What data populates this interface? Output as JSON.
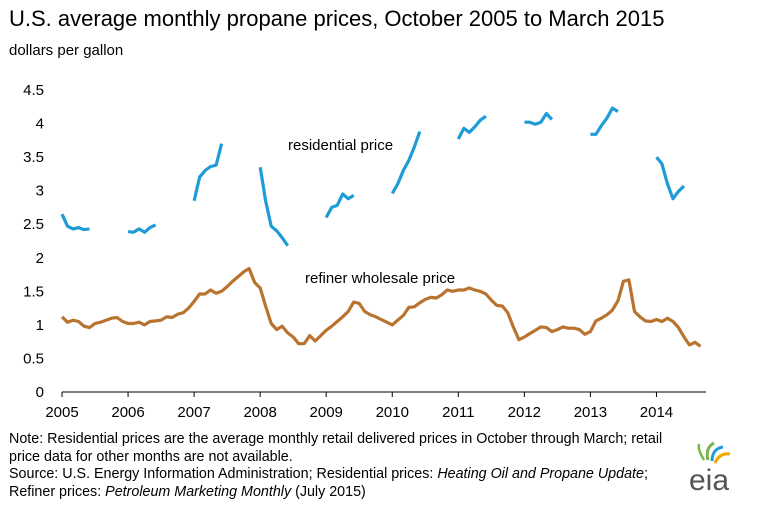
{
  "title": "U.S. average monthly propane prices, October 2005 to March 2015",
  "unit_label": "dollars per gallon",
  "notes": {
    "note_line": "Note: Residential prices are the average monthly retail delivered prices in October through March; retail price data for other months are not available.",
    "source_prefix": "Source: U.S. Energy Information Administration; Residential prices: ",
    "source_pub1": "Heating Oil and Propane Update",
    "source_mid": "; Refiner prices: ",
    "source_pub2": "Petroleum Marketing Monthly",
    "source_suffix": " (July 2015)"
  },
  "logo_text": "eia",
  "colors": {
    "residential": "#1f9bd7",
    "refiner": "#b8732f",
    "axis": "#000000"
  },
  "chart_data": {
    "type": "line",
    "xlabel": "",
    "ylabel": "dollars per gallon",
    "ylim": [
      0,
      4.5
    ],
    "yticks": [
      0,
      0.5,
      1,
      1.5,
      2,
      2.5,
      3,
      3.5,
      4,
      4.5
    ],
    "ytick_labels": [
      "0",
      "0.5",
      "1",
      "1.5",
      "2",
      "2.5",
      "3",
      "3.5",
      "4",
      "4.5"
    ],
    "xlim": [
      2005,
      2014.75
    ],
    "xticks": [
      2005,
      2006,
      2007,
      2008,
      2009,
      2010,
      2011,
      2012,
      2013,
      2014
    ],
    "xtick_labels": [
      "2005",
      "2006",
      "2007",
      "2008",
      "2009",
      "2010",
      "2011",
      "2012",
      "2013",
      "2014"
    ],
    "grid": false,
    "legend": "none",
    "annotations": [
      {
        "text": "residential price",
        "series": "residential"
      },
      {
        "text": "refiner wholesale price",
        "series": "refiner"
      }
    ],
    "series": [
      {
        "id": "residential",
        "segments": [
          [
            [
              2005.0,
              2.65
            ],
            [
              2005.083,
              2.47
            ],
            [
              2005.167,
              2.43
            ],
            [
              2005.25,
              2.45
            ],
            [
              2005.333,
              2.42
            ],
            [
              2005.417,
              2.43
            ]
          ],
          [
            [
              2006.0,
              2.39
            ],
            [
              2006.083,
              2.38
            ],
            [
              2006.167,
              2.43
            ],
            [
              2006.25,
              2.38
            ],
            [
              2006.333,
              2.45
            ],
            [
              2006.417,
              2.49
            ]
          ],
          [
            [
              2007.0,
              2.85
            ],
            [
              2007.083,
              3.2
            ],
            [
              2007.167,
              3.3
            ],
            [
              2007.25,
              3.36
            ],
            [
              2007.333,
              3.38
            ],
            [
              2007.417,
              3.7
            ]
          ],
          [
            [
              2008.0,
              3.35
            ],
            [
              2008.083,
              2.85
            ],
            [
              2008.167,
              2.47
            ],
            [
              2008.25,
              2.4
            ],
            [
              2008.333,
              2.3
            ],
            [
              2008.417,
              2.18
            ]
          ],
          [
            [
              2009.0,
              2.6
            ],
            [
              2009.083,
              2.75
            ],
            [
              2009.167,
              2.78
            ],
            [
              2009.25,
              2.95
            ],
            [
              2009.333,
              2.88
            ],
            [
              2009.417,
              2.93
            ]
          ],
          [
            [
              2010.0,
              2.96
            ],
            [
              2010.083,
              3.1
            ],
            [
              2010.167,
              3.3
            ],
            [
              2010.25,
              3.45
            ],
            [
              2010.333,
              3.65
            ],
            [
              2010.417,
              3.88
            ]
          ],
          [
            [
              2011.0,
              3.77
            ],
            [
              2011.083,
              3.93
            ],
            [
              2011.167,
              3.87
            ],
            [
              2011.25,
              3.95
            ],
            [
              2011.333,
              4.05
            ],
            [
              2011.417,
              4.11
            ]
          ],
          [
            [
              2012.0,
              4.02
            ],
            [
              2012.083,
              4.02
            ],
            [
              2012.167,
              3.99
            ],
            [
              2012.25,
              4.02
            ],
            [
              2012.333,
              4.15
            ],
            [
              2012.417,
              4.06
            ]
          ],
          [
            [
              2013.0,
              3.84
            ],
            [
              2013.083,
              3.84
            ],
            [
              2013.167,
              3.97
            ],
            [
              2013.25,
              4.08
            ],
            [
              2013.333,
              4.23
            ],
            [
              2013.417,
              4.18
            ]
          ],
          [
            [
              2014.0,
              3.5
            ],
            [
              2014.083,
              3.4
            ],
            [
              2014.167,
              3.1
            ],
            [
              2014.25,
              2.88
            ],
            [
              2014.333,
              2.99
            ],
            [
              2014.417,
              3.07
            ]
          ]
        ]
      },
      {
        "id": "refiner",
        "segments": [
          [
            [
              2005.0,
              1.12
            ],
            [
              2005.083,
              1.04
            ],
            [
              2005.167,
              1.07
            ],
            [
              2005.25,
              1.05
            ],
            [
              2005.333,
              0.98
            ],
            [
              2005.417,
              0.96
            ],
            [
              2005.5,
              1.02
            ],
            [
              2005.583,
              1.04
            ],
            [
              2005.667,
              1.07
            ],
            [
              2005.75,
              1.1
            ],
            [
              2005.833,
              1.11
            ],
            [
              2005.917,
              1.05
            ],
            [
              2006.0,
              1.02
            ],
            [
              2006.083,
              1.02
            ],
            [
              2006.167,
              1.04
            ],
            [
              2006.25,
              1.0
            ],
            [
              2006.333,
              1.05
            ],
            [
              2006.417,
              1.06
            ],
            [
              2006.5,
              1.07
            ],
            [
              2006.583,
              1.12
            ],
            [
              2006.667,
              1.11
            ],
            [
              2006.75,
              1.16
            ],
            [
              2006.833,
              1.18
            ],
            [
              2006.917,
              1.25
            ],
            [
              2007.0,
              1.35
            ],
            [
              2007.083,
              1.46
            ],
            [
              2007.167,
              1.46
            ],
            [
              2007.25,
              1.52
            ],
            [
              2007.333,
              1.47
            ],
            [
              2007.417,
              1.5
            ],
            [
              2007.5,
              1.57
            ],
            [
              2007.583,
              1.65
            ],
            [
              2007.667,
              1.72
            ],
            [
              2007.75,
              1.79
            ],
            [
              2007.833,
              1.84
            ],
            [
              2007.917,
              1.63
            ],
            [
              2008.0,
              1.55
            ],
            [
              2008.083,
              1.28
            ],
            [
              2008.167,
              1.02
            ],
            [
              2008.25,
              0.93
            ],
            [
              2008.333,
              0.98
            ],
            [
              2008.417,
              0.88
            ],
            [
              2008.5,
              0.82
            ],
            [
              2008.583,
              0.72
            ],
            [
              2008.667,
              0.72
            ],
            [
              2008.75,
              0.84
            ],
            [
              2008.833,
              0.76
            ],
            [
              2008.917,
              0.84
            ],
            [
              2009.0,
              0.92
            ],
            [
              2009.083,
              0.98
            ],
            [
              2009.167,
              1.05
            ],
            [
              2009.25,
              1.12
            ],
            [
              2009.333,
              1.2
            ],
            [
              2009.417,
              1.34
            ],
            [
              2009.5,
              1.32
            ],
            [
              2009.583,
              1.2
            ],
            [
              2009.667,
              1.15
            ],
            [
              2009.75,
              1.12
            ],
            [
              2009.833,
              1.08
            ],
            [
              2009.917,
              1.04
            ],
            [
              2010.0,
              1.0
            ],
            [
              2010.083,
              1.07
            ],
            [
              2010.167,
              1.14
            ],
            [
              2010.25,
              1.26
            ],
            [
              2010.333,
              1.27
            ],
            [
              2010.417,
              1.33
            ],
            [
              2010.5,
              1.38
            ],
            [
              2010.583,
              1.41
            ],
            [
              2010.667,
              1.4
            ],
            [
              2010.75,
              1.45
            ],
            [
              2010.833,
              1.52
            ],
            [
              2010.917,
              1.5
            ],
            [
              2011.0,
              1.52
            ],
            [
              2011.083,
              1.52
            ],
            [
              2011.167,
              1.55
            ],
            [
              2011.25,
              1.52
            ],
            [
              2011.333,
              1.5
            ],
            [
              2011.417,
              1.46
            ],
            [
              2011.5,
              1.37
            ],
            [
              2011.583,
              1.29
            ],
            [
              2011.667,
              1.28
            ],
            [
              2011.75,
              1.18
            ],
            [
              2011.833,
              0.97
            ],
            [
              2011.917,
              0.78
            ],
            [
              2012.0,
              0.82
            ],
            [
              2012.083,
              0.87
            ],
            [
              2012.167,
              0.92
            ],
            [
              2012.25,
              0.97
            ],
            [
              2012.333,
              0.96
            ],
            [
              2012.417,
              0.9
            ],
            [
              2012.5,
              0.93
            ],
            [
              2012.583,
              0.97
            ],
            [
              2012.667,
              0.95
            ],
            [
              2012.75,
              0.95
            ],
            [
              2012.833,
              0.93
            ],
            [
              2012.917,
              0.86
            ],
            [
              2013.0,
              0.9
            ],
            [
              2013.083,
              1.06
            ],
            [
              2013.167,
              1.1
            ],
            [
              2013.25,
              1.15
            ],
            [
              2013.333,
              1.22
            ],
            [
              2013.417,
              1.36
            ],
            [
              2013.5,
              1.65
            ],
            [
              2013.583,
              1.67
            ],
            [
              2013.667,
              1.2
            ],
            [
              2013.75,
              1.12
            ],
            [
              2013.833,
              1.06
            ],
            [
              2013.917,
              1.05
            ],
            [
              2014.0,
              1.08
            ],
            [
              2014.083,
              1.05
            ],
            [
              2014.167,
              1.1
            ],
            [
              2014.25,
              1.05
            ],
            [
              2014.333,
              0.96
            ],
            [
              2014.417,
              0.82
            ],
            [
              2014.5,
              0.7
            ],
            [
              2014.583,
              0.74
            ],
            [
              2014.667,
              0.68
            ]
          ]
        ]
      }
    ]
  }
}
